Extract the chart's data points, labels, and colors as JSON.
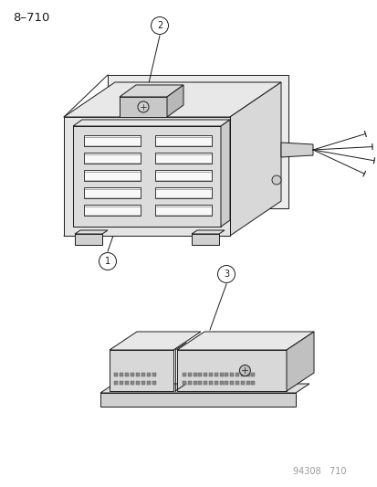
{
  "title": "8–710",
  "footer": "94308   710",
  "background_color": "#ffffff",
  "line_color": "#1a1a1a",
  "label1": "1",
  "label2": "2",
  "label3": "3",
  "figsize": [
    4.14,
    5.33
  ],
  "dpi": 100
}
